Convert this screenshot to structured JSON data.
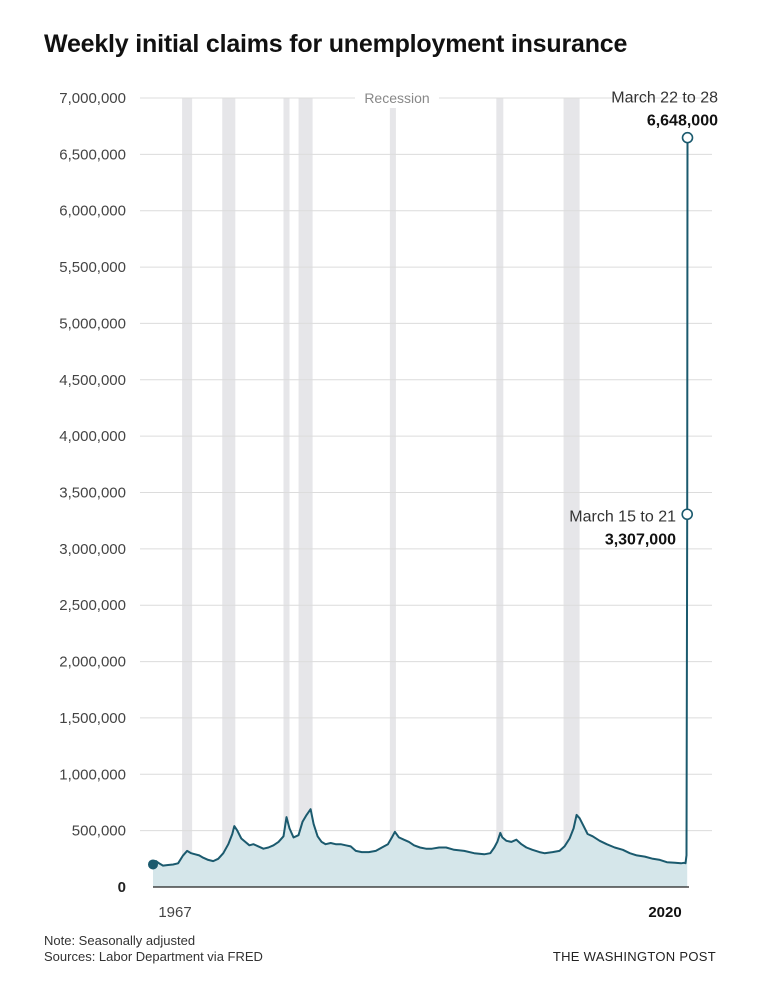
{
  "chart_data": {
    "type": "area",
    "title": "Weekly initial claims for unemployment insurance",
    "xlabel": "",
    "ylabel": "",
    "x_range": [
      1967,
      2020.25
    ],
    "ylim": [
      0,
      7000000
    ],
    "y_ticks": [
      "7,000,000",
      "6,500,000",
      "6,000,000",
      "5,500,000",
      "5,000,000",
      "4,500,000",
      "4,000,000",
      "3,500,000",
      "3,000,000",
      "2,500,000",
      "2,000,000",
      "1,500,000",
      "1,000,000",
      "500,000",
      "0"
    ],
    "x_ticks": [
      {
        "label": "1967",
        "bold": false
      },
      {
        "label": "2020",
        "bold": true
      }
    ],
    "grid": true,
    "legend_label": "Recession",
    "recessions": [
      [
        1969.9,
        1970.9
      ],
      [
        1973.9,
        1975.2
      ],
      [
        1980.0,
        1980.5
      ],
      [
        1981.5,
        1982.9
      ],
      [
        1990.6,
        1991.2
      ],
      [
        2001.2,
        2001.9
      ],
      [
        2007.9,
        2009.5
      ]
    ],
    "series": [
      {
        "x": [
          1967.0,
          1967.3,
          1967.6,
          1968.0,
          1968.5,
          1969.0,
          1969.5,
          1970.0,
          1970.4,
          1970.8,
          1971.2,
          1971.6,
          1972.0,
          1972.5,
          1973.0,
          1973.5,
          1974.0,
          1974.5,
          1974.9,
          1975.1,
          1975.4,
          1975.8,
          1976.2,
          1976.6,
          1977.0,
          1977.5,
          1978.0,
          1978.5,
          1979.0,
          1979.5,
          1980.0,
          1980.3,
          1980.6,
          1981.0,
          1981.5,
          1981.9,
          1982.3,
          1982.7,
          1983.0,
          1983.4,
          1983.8,
          1984.2,
          1984.7,
          1985.2,
          1985.7,
          1986.2,
          1986.7,
          1987.2,
          1987.8,
          1988.5,
          1989.2,
          1989.8,
          1990.4,
          1990.8,
          1991.1,
          1991.5,
          1992.0,
          1992.5,
          1993.0,
          1993.6,
          1994.2,
          1994.8,
          1995.5,
          1996.2,
          1997.0,
          1998.0,
          1999.0,
          2000.0,
          2000.6,
          2001.0,
          2001.3,
          2001.6,
          2001.8,
          2002.2,
          2002.7,
          2003.2,
          2003.7,
          2004.2,
          2004.8,
          2005.5,
          2006.0,
          2006.8,
          2007.5,
          2008.0,
          2008.5,
          2008.9,
          2009.2,
          2009.5,
          2009.9,
          2010.3,
          2010.8,
          2011.5,
          2012.2,
          2013.0,
          2013.8,
          2014.5,
          2015.2,
          2016.0,
          2016.8,
          2017.5,
          2018.2,
          2019.0,
          2019.6,
          2019.9,
          2020.05,
          2020.15,
          2020.22
        ],
        "y": [
          200000,
          230000,
          210000,
          190000,
          195000,
          200000,
          210000,
          280000,
          320000,
          300000,
          290000,
          280000,
          260000,
          240000,
          230000,
          250000,
          300000,
          380000,
          470000,
          540000,
          500000,
          430000,
          400000,
          370000,
          380000,
          360000,
          340000,
          350000,
          370000,
          400000,
          450000,
          620000,
          520000,
          440000,
          460000,
          580000,
          640000,
          690000,
          560000,
          450000,
          400000,
          380000,
          390000,
          380000,
          380000,
          370000,
          360000,
          320000,
          310000,
          310000,
          320000,
          350000,
          380000,
          440000,
          490000,
          440000,
          420000,
          400000,
          370000,
          350000,
          340000,
          340000,
          350000,
          350000,
          330000,
          320000,
          300000,
          290000,
          300000,
          350000,
          400000,
          480000,
          440000,
          410000,
          400000,
          420000,
          380000,
          350000,
          330000,
          310000,
          300000,
          310000,
          320000,
          360000,
          430000,
          520000,
          640000,
          610000,
          540000,
          470000,
          450000,
          410000,
          380000,
          350000,
          330000,
          300000,
          280000,
          270000,
          250000,
          240000,
          220000,
          215000,
          210000,
          215000,
          211000,
          282000,
          3307000
        ]
      }
    ],
    "annotations": [
      {
        "date_label": "March 15 to 21",
        "value_label": "3,307,000",
        "x": 2020.22,
        "y": 3307000
      },
      {
        "date_label": "March 22 to 28",
        "value_label": "6,648,000",
        "x": 2020.25,
        "y": 6648000
      }
    ]
  },
  "footer": {
    "note": "Note: Seasonally adjusted",
    "sources": "Sources: Labor Department via FRED",
    "brand": "THE WASHINGTON POST"
  },
  "colors": {
    "line": "#1b5a6e",
    "area": "#d5e6ea",
    "recession": "#e6e6e9",
    "grid": "#dcdcdc"
  }
}
